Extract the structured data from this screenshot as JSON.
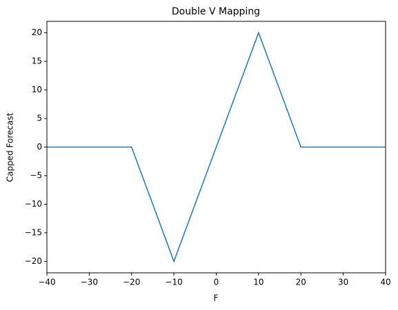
{
  "chart_data": {
    "type": "line",
    "title": "Double V Mapping",
    "x_label": "F",
    "y_label": "Capped Forecast",
    "x": [
      -40,
      -20,
      -10,
      10,
      20,
      40
    ],
    "values": [
      0,
      0,
      -20,
      20,
      0,
      0
    ],
    "color": "#1f77b4",
    "xlim": [
      -40,
      40
    ],
    "xticks": [
      {
        "value": -40,
        "label": "−40"
      },
      {
        "value": -30,
        "label": "−30"
      },
      {
        "value": -20,
        "label": "−20"
      },
      {
        "value": -10,
        "label": "−10"
      },
      0,
      10,
      20,
      30,
      40
    ],
    "ylim": [
      -22,
      22
    ],
    "yticks": [
      {
        "value": -20,
        "label": "−20"
      },
      {
        "value": -15,
        "label": "−15"
      },
      {
        "value": -10,
        "label": "−10"
      },
      {
        "value": -5,
        "label": "−5"
      },
      0,
      5,
      10,
      15,
      20
    ],
    "grid": false
  }
}
